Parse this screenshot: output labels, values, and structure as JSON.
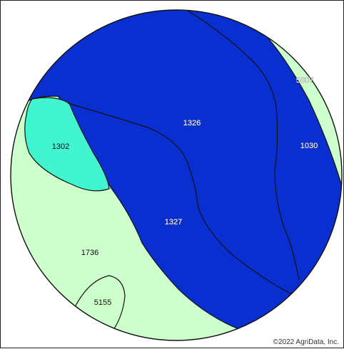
{
  "map": {
    "colors": {
      "light_soil": "#ccffcc",
      "teal_soil": "#40f5d0",
      "blue_soil": "#0a2fd0",
      "boundary": "#111111",
      "circle_outline": "#111111"
    },
    "soil_units": [
      {
        "id": "1326",
        "label": "1326",
        "fill": "blue"
      },
      {
        "id": "1327",
        "label": "1327",
        "fill": "blue"
      },
      {
        "id": "1030",
        "label": "1030",
        "fill": "blue"
      },
      {
        "id": "1302",
        "label": "1302",
        "fill": "teal"
      },
      {
        "id": "1736",
        "label": "1736",
        "fill": "light"
      },
      {
        "id": "5155",
        "label": "5155",
        "fill": "light"
      },
      {
        "id": "5607",
        "label": "5607",
        "fill": "light"
      }
    ],
    "credit": "©2022 AgriData, Inc."
  }
}
